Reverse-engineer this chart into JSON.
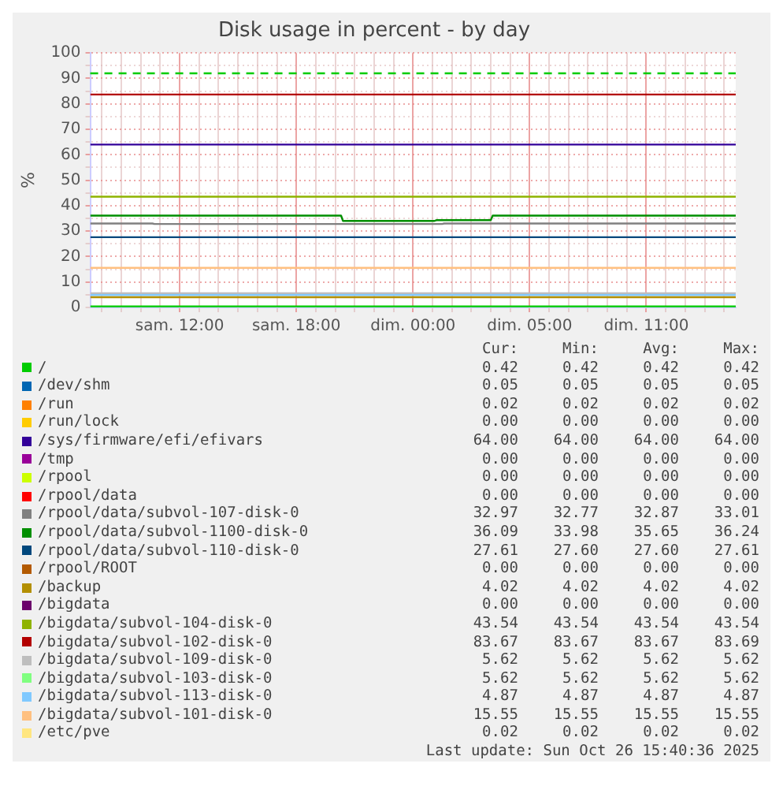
{
  "chart_data": {
    "type": "line",
    "title": "Disk usage in percent - by day",
    "ylabel": "%",
    "x": [
      "2025-10-25T05:24",
      "2025-10-26T14:36"
    ],
    "xlim": [
      "2025-10-25T05:24",
      "2025-10-26T14:36"
    ],
    "xticks": [
      {
        "value": "2025-10-25T06:00",
        "label": null
      },
      {
        "value": "2025-10-25T07:00",
        "label": null
      },
      {
        "value": "2025-10-25T08:00",
        "label": null
      },
      {
        "value": "2025-10-25T09:00",
        "label": null
      },
      {
        "value": "2025-10-25T10:00",
        "label": "sam. 12:00"
      },
      {
        "value": "2025-10-25T11:00",
        "label": null
      },
      {
        "value": "2025-10-25T12:00",
        "label": null
      },
      {
        "value": "2025-10-25T13:00",
        "label": null
      },
      {
        "value": "2025-10-25T14:00",
        "label": null
      },
      {
        "value": "2025-10-25T15:00",
        "label": null
      },
      {
        "value": "2025-10-25T16:00",
        "label": "sam. 18:00"
      },
      {
        "value": "2025-10-25T17:00",
        "label": null
      },
      {
        "value": "2025-10-25T18:00",
        "label": null
      },
      {
        "value": "2025-10-25T19:00",
        "label": null
      },
      {
        "value": "2025-10-25T20:00",
        "label": null
      },
      {
        "value": "2025-10-25T21:00",
        "label": null
      },
      {
        "value": "2025-10-25T22:00",
        "label": "dim. 00:00"
      },
      {
        "value": "2025-10-25T23:00",
        "label": null
      },
      {
        "value": "2025-10-26T00:00",
        "label": null
      },
      {
        "value": "2025-10-26T01:00",
        "label": null
      },
      {
        "value": "2025-10-26T02:00",
        "label": null
      },
      {
        "value": "2025-10-26T03:00",
        "label": null
      },
      {
        "value": "2025-10-26T04:00",
        "label": "dim. 05:00"
      },
      {
        "value": "2025-10-26T05:00",
        "label": null
      },
      {
        "value": "2025-10-26T06:00",
        "label": null
      },
      {
        "value": "2025-10-26T07:00",
        "label": null
      },
      {
        "value": "2025-10-26T08:00",
        "label": null
      },
      {
        "value": "2025-10-26T09:00",
        "label": null
      },
      {
        "value": "2025-10-26T10:00",
        "label": "dim. 11:00"
      },
      {
        "value": "2025-10-26T11:00",
        "label": null
      },
      {
        "value": "2025-10-26T12:00",
        "label": null
      },
      {
        "value": "2025-10-26T13:00",
        "label": null
      },
      {
        "value": "2025-10-26T14:00",
        "label": null
      }
    ],
    "ylim": [
      0,
      100
    ],
    "yticks": [
      0,
      {
        "value": 5,
        "label": null
      },
      10,
      {
        "value": 15,
        "label": null
      },
      20,
      {
        "value": 25,
        "label": null
      },
      30,
      {
        "value": 35,
        "label": null
      },
      40,
      {
        "value": 45,
        "label": null
      },
      50,
      {
        "value": 55,
        "label": null
      },
      60,
      {
        "value": 65,
        "label": null
      },
      70,
      {
        "value": 75,
        "label": null
      },
      80,
      {
        "value": 85,
        "label": null
      },
      90,
      {
        "value": 95,
        "label": null
      },
      100
    ],
    "grid": true,
    "legend": "bottom",
    "marker": "none",
    "line_style": "solid",
    "ref_lines": [
      {
        "axis": "y",
        "value": 92,
        "color": "#00cc00",
        "line_style": "dashed"
      }
    ],
    "series": [
      {
        "name": "/",
        "color": "#00cc00",
        "values": [
          0.42,
          0.42
        ]
      },
      {
        "name": "/dev/shm",
        "color": "#0066b3",
        "values": [
          null,
          null
        ]
      },
      {
        "name": "/run",
        "color": "#ff8000",
        "values": [
          null,
          null
        ]
      },
      {
        "name": "/run/lock",
        "color": "#ffcc00",
        "values": [
          null,
          null
        ]
      },
      {
        "name": "/sys/firmware/efi/efivars",
        "color": "#330099",
        "values": [
          64.0,
          64.0
        ]
      },
      {
        "name": "/tmp",
        "color": "#990099",
        "values": [
          null,
          null
        ]
      },
      {
        "name": "/rpool",
        "color": "#ccff00",
        "values": [
          null,
          null
        ]
      },
      {
        "name": "/rpool/data",
        "color": "#ff0000",
        "values": [
          null,
          null
        ]
      },
      {
        "name": "/rpool/data/subvol-107-disk-0",
        "color": "#808080",
        "x": [
          "2025-10-25T05:24",
          "2025-10-25T08:36",
          "2025-10-25T08:42",
          "2025-10-25T23:30",
          "2025-10-25T23:36",
          "2025-10-26T14:36"
        ],
        "values": [
          33.0,
          33.0,
          32.8,
          32.8,
          33.0,
          33.0
        ]
      },
      {
        "name": "/rpool/data/subvol-1100-disk-0",
        "color": "#008f00",
        "x": [
          "2025-10-25T05:24",
          "2025-10-25T18:18",
          "2025-10-25T18:24",
          "2025-10-25T23:06",
          "2025-10-25T23:12",
          "2025-10-26T02:00",
          "2025-10-26T02:06",
          "2025-10-26T14:36"
        ],
        "values": [
          36.1,
          36.1,
          34.0,
          34.0,
          34.3,
          34.3,
          36.1,
          36.1
        ]
      },
      {
        "name": "/rpool/data/subvol-110-disk-0",
        "color": "#00487d",
        "values": [
          27.61,
          27.61
        ]
      },
      {
        "name": "/rpool/ROOT",
        "color": "#b35a00",
        "values": [
          null,
          null
        ]
      },
      {
        "name": "/backup",
        "color": "#b38f00",
        "values": [
          4.02,
          4.02
        ]
      },
      {
        "name": "/bigdata",
        "color": "#6b006b",
        "values": [
          null,
          null
        ]
      },
      {
        "name": "/bigdata/subvol-104-disk-0",
        "color": "#8fb300",
        "values": [
          43.54,
          43.54
        ]
      },
      {
        "name": "/bigdata/subvol-102-disk-0",
        "color": "#b30000",
        "values": [
          83.67,
          83.67
        ]
      },
      {
        "name": "/bigdata/subvol-109-disk-0",
        "color": "#bebebe",
        "values": [
          5.62,
          5.62
        ]
      },
      {
        "name": "/bigdata/subvol-103-disk-0",
        "color": "#80ff80",
        "values": [
          null,
          null
        ]
      },
      {
        "name": "/bigdata/subvol-113-disk-0",
        "color": "#80c9ff",
        "values": [
          4.87,
          4.87
        ]
      },
      {
        "name": "/bigdata/subvol-101-disk-0",
        "color": "#ffc080",
        "values": [
          15.55,
          15.55
        ]
      },
      {
        "name": "/etc/pve",
        "color": "#ffe680",
        "values": [
          null,
          null
        ]
      }
    ],
    "annotations": [
      "Cur:",
      "Min:",
      "Avg:",
      "Max:",
      "0.42",
      "0.42",
      "0.42",
      "0.42",
      "0.05",
      "0.05",
      "0.05",
      "0.05",
      "0.02",
      "0.02",
      "0.02",
      "0.02",
      "0.00",
      "0.00",
      "0.00",
      "0.00",
      "64.00",
      "64.00",
      "64.00",
      "64.00",
      "0.00",
      "0.00",
      "0.00",
      "0.00",
      "0.00",
      "0.00",
      "0.00",
      "0.00",
      "0.00",
      "0.00",
      "0.00",
      "0.00",
      "32.97",
      "32.77",
      "32.87",
      "33.01",
      "36.09",
      "33.98",
      "35.65",
      "36.24",
      "27.61",
      "27.60",
      "27.60",
      "27.61",
      "0.00",
      "0.00",
      "0.00",
      "0.00",
      "4.02",
      "4.02",
      "4.02",
      "4.02",
      "0.00",
      "0.00",
      "0.00",
      "0.00",
      "43.54",
      "43.54",
      "43.54",
      "43.54",
      "83.67",
      "83.67",
      "83.67",
      "83.69",
      "5.62",
      "5.62",
      "5.62",
      "5.62",
      "5.62",
      "5.62",
      "5.62",
      "5.62",
      "4.87",
      "4.87",
      "4.87",
      "4.87",
      "15.55",
      "15.55",
      "15.55",
      "15.55",
      "0.02",
      "0.02",
      "0.02",
      "0.02",
      "Last update: Sun Oct 26 15:40:36 2025"
    ]
  }
}
